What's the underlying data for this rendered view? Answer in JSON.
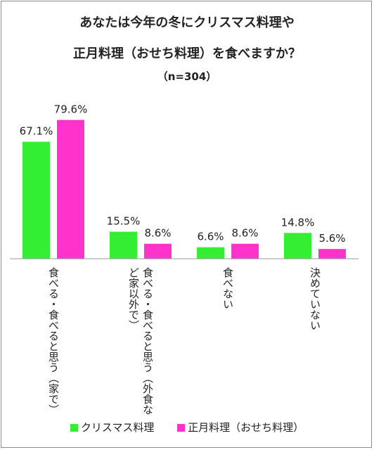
{
  "chart_data": {
    "type": "bar",
    "title_lines": [
      "あなたは今年の冬にクリスマス料理や",
      "正月料理（おせち料理）を食べますか？"
    ],
    "subtitle": "（n=304）",
    "categories": [
      [
        "食べる・食べると思う（家で）"
      ],
      [
        "食べる・食べると思う（外食な",
        "ど家以外で）"
      ],
      [
        "食べない"
      ],
      [
        "決めていない"
      ]
    ],
    "series": [
      {
        "name": "クリスマス料理",
        "color": "#33ee33",
        "values": [
          67.1,
          15.5,
          6.6,
          14.8
        ],
        "labels": [
          "67.1%",
          "15.5%",
          "6.6%",
          "14.8%"
        ]
      },
      {
        "name": "正月料理（おせち料理）",
        "color": "#ff33cc",
        "values": [
          79.6,
          8.6,
          8.6,
          5.6
        ],
        "labels": [
          "79.6%",
          "8.6%",
          "8.6%",
          "5.6%"
        ]
      }
    ],
    "ylim": [
      0,
      100
    ],
    "grid": false,
    "legend_position": "bottom"
  }
}
